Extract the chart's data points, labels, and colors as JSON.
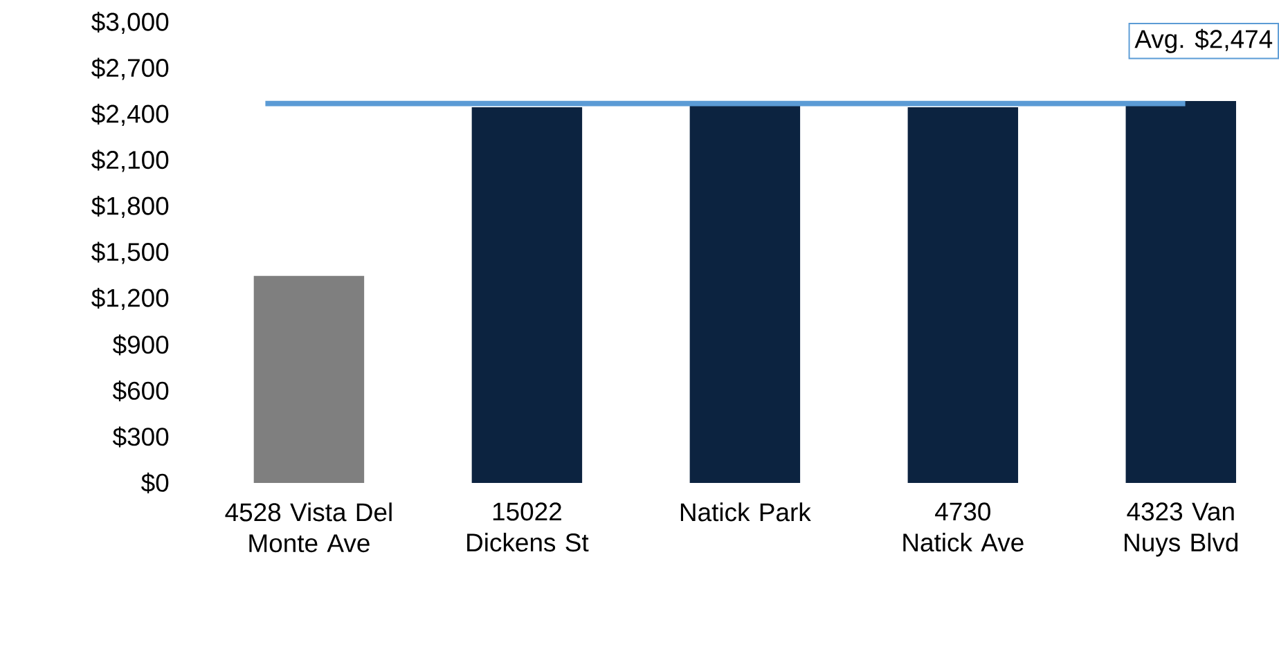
{
  "chart_data": {
    "type": "bar",
    "categories": [
      "4528 Vista Del Monte Ave",
      "15022 Dickens St",
      "Natick Park",
      "4730 Natick Ave",
      "4323 Van Nuys Blvd"
    ],
    "values": [
      1350,
      2450,
      2480,
      2450,
      2490
    ],
    "colors": [
      "#7f7f7f",
      "#0c2340",
      "#0c2340",
      "#0c2340",
      "#0c2340"
    ],
    "ylim": [
      0,
      3000
    ],
    "yticks": [
      {
        "value": 0,
        "label": "$0"
      },
      {
        "value": 300,
        "label": "$300"
      },
      {
        "value": 600,
        "label": "$600"
      },
      {
        "value": 900,
        "label": "$900"
      },
      {
        "value": 1200,
        "label": "$1,200"
      },
      {
        "value": 1500,
        "label": "$1,500"
      },
      {
        "value": 1800,
        "label": "$1,800"
      },
      {
        "value": 2100,
        "label": "$2,100"
      },
      {
        "value": 2400,
        "label": "$2,400"
      },
      {
        "value": 2700,
        "label": "$2,700"
      },
      {
        "value": 3000,
        "label": "$3,000"
      }
    ],
    "ref_lines": [
      {
        "axis": "y",
        "value": 2474,
        "label": "Avg. $2,474",
        "color": "#5b9bd5"
      }
    ]
  }
}
